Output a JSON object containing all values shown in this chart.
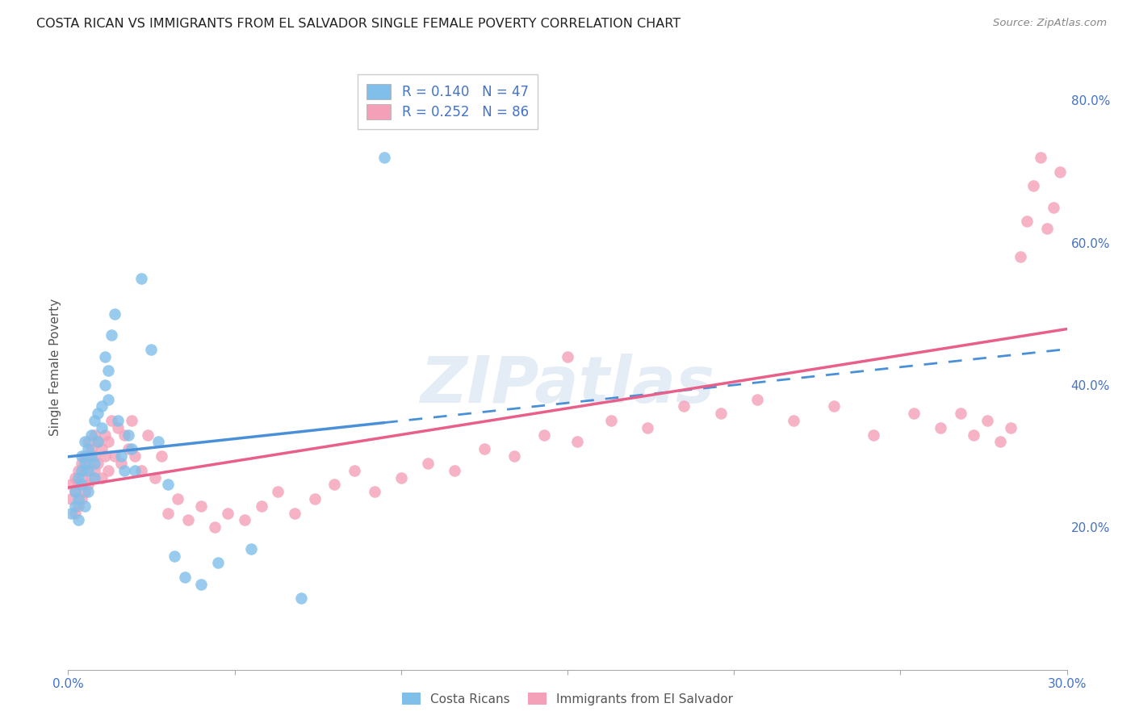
{
  "title": "COSTA RICAN VS IMMIGRANTS FROM EL SALVADOR SINGLE FEMALE POVERTY CORRELATION CHART",
  "source": "Source: ZipAtlas.com",
  "ylabel": "Single Female Poverty",
  "xlim": [
    0.0,
    0.3
  ],
  "ylim": [
    0.0,
    0.85
  ],
  "xtick_vals": [
    0.0,
    0.05,
    0.1,
    0.15,
    0.2,
    0.25,
    0.3
  ],
  "xticklabels": [
    "0.0%",
    "",
    "",
    "",
    "",
    "",
    "30.0%"
  ],
  "yticks_right": [
    0.2,
    0.4,
    0.6,
    0.8
  ],
  "ytick_labels_right": [
    "20.0%",
    "40.0%",
    "60.0%",
    "80.0%"
  ],
  "legend_r1": "R = 0.140",
  "legend_n1": "N = 47",
  "legend_r2": "R = 0.252",
  "legend_n2": "N = 86",
  "color_blue": "#7fbfea",
  "color_pink": "#f4a0b8",
  "color_blue_line": "#4a90d9",
  "color_pink_line": "#e8608a",
  "color_axis_text": "#4472c4",
  "watermark": "ZIPatlas",
  "background_color": "#ffffff",
  "grid_color": "#d8d8d8",
  "cr_line_solid_end": 0.095,
  "cr_line_dash_end": 0.3,
  "es_line_end": 0.3,
  "costa_rican_x": [
    0.001,
    0.002,
    0.002,
    0.003,
    0.003,
    0.003,
    0.004,
    0.004,
    0.004,
    0.005,
    0.005,
    0.005,
    0.006,
    0.006,
    0.006,
    0.007,
    0.007,
    0.008,
    0.008,
    0.008,
    0.009,
    0.009,
    0.01,
    0.01,
    0.011,
    0.011,
    0.012,
    0.012,
    0.013,
    0.014,
    0.015,
    0.016,
    0.017,
    0.018,
    0.019,
    0.02,
    0.022,
    0.025,
    0.027,
    0.03,
    0.032,
    0.035,
    0.04,
    0.045,
    0.055,
    0.07,
    0.095
  ],
  "costa_rican_y": [
    0.22,
    0.23,
    0.25,
    0.21,
    0.24,
    0.27,
    0.26,
    0.28,
    0.3,
    0.23,
    0.29,
    0.32,
    0.28,
    0.31,
    0.25,
    0.3,
    0.33,
    0.27,
    0.35,
    0.29,
    0.32,
    0.36,
    0.34,
    0.37,
    0.4,
    0.44,
    0.38,
    0.42,
    0.47,
    0.5,
    0.35,
    0.3,
    0.28,
    0.33,
    0.31,
    0.28,
    0.55,
    0.45,
    0.32,
    0.26,
    0.16,
    0.13,
    0.12,
    0.15,
    0.17,
    0.1,
    0.72
  ],
  "el_salvador_x": [
    0.001,
    0.001,
    0.002,
    0.002,
    0.002,
    0.003,
    0.003,
    0.003,
    0.004,
    0.004,
    0.004,
    0.005,
    0.005,
    0.005,
    0.006,
    0.006,
    0.006,
    0.007,
    0.007,
    0.008,
    0.008,
    0.008,
    0.009,
    0.009,
    0.01,
    0.01,
    0.011,
    0.011,
    0.012,
    0.012,
    0.013,
    0.014,
    0.015,
    0.016,
    0.017,
    0.018,
    0.019,
    0.02,
    0.022,
    0.024,
    0.026,
    0.028,
    0.03,
    0.033,
    0.036,
    0.04,
    0.044,
    0.048,
    0.053,
    0.058,
    0.063,
    0.068,
    0.074,
    0.08,
    0.086,
    0.092,
    0.1,
    0.108,
    0.116,
    0.125,
    0.134,
    0.143,
    0.153,
    0.163,
    0.174,
    0.185,
    0.196,
    0.207,
    0.218,
    0.23,
    0.242,
    0.254,
    0.262,
    0.268,
    0.272,
    0.276,
    0.28,
    0.283,
    0.286,
    0.288,
    0.29,
    0.292,
    0.294,
    0.296,
    0.298,
    0.15
  ],
  "el_salvador_y": [
    0.24,
    0.26,
    0.22,
    0.25,
    0.27,
    0.23,
    0.26,
    0.28,
    0.24,
    0.27,
    0.29,
    0.25,
    0.28,
    0.3,
    0.26,
    0.29,
    0.32,
    0.27,
    0.31,
    0.28,
    0.33,
    0.3,
    0.29,
    0.32,
    0.27,
    0.31,
    0.3,
    0.33,
    0.28,
    0.32,
    0.35,
    0.3,
    0.34,
    0.29,
    0.33,
    0.31,
    0.35,
    0.3,
    0.28,
    0.33,
    0.27,
    0.3,
    0.22,
    0.24,
    0.21,
    0.23,
    0.2,
    0.22,
    0.21,
    0.23,
    0.25,
    0.22,
    0.24,
    0.26,
    0.28,
    0.25,
    0.27,
    0.29,
    0.28,
    0.31,
    0.3,
    0.33,
    0.32,
    0.35,
    0.34,
    0.37,
    0.36,
    0.38,
    0.35,
    0.37,
    0.33,
    0.36,
    0.34,
    0.36,
    0.33,
    0.35,
    0.32,
    0.34,
    0.58,
    0.63,
    0.68,
    0.72,
    0.62,
    0.65,
    0.7,
    0.44
  ]
}
